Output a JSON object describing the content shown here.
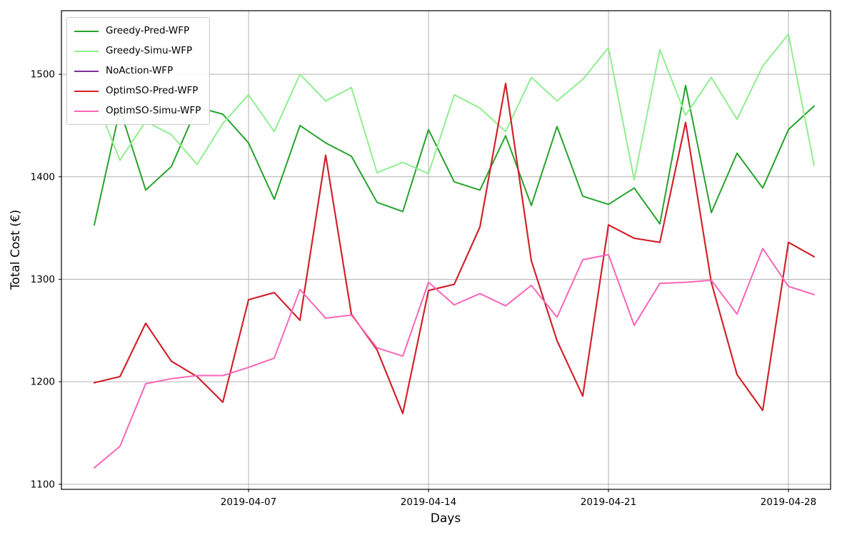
{
  "chart_data": {
    "type": "line",
    "title": "",
    "xlabel": "Days",
    "ylabel": "Total Cost (€)",
    "grid": true,
    "legend_position": "upper-left",
    "x": [
      "2019-04-01",
      "2019-04-02",
      "2019-04-03",
      "2019-04-04",
      "2019-04-05",
      "2019-04-06",
      "2019-04-07",
      "2019-04-08",
      "2019-04-09",
      "2019-04-10",
      "2019-04-11",
      "2019-04-12",
      "2019-04-13",
      "2019-04-14",
      "2019-04-15",
      "2019-04-16",
      "2019-04-17",
      "2019-04-18",
      "2019-04-19",
      "2019-04-20",
      "2019-04-21",
      "2019-04-22",
      "2019-04-23",
      "2019-04-24",
      "2019-04-25",
      "2019-04-26",
      "2019-04-27",
      "2019-04-28",
      "2019-04-29"
    ],
    "x_tick_labels": [
      "2019-04-07",
      "2019-04-14",
      "2019-04-21",
      "2019-04-28"
    ],
    "x_tick_indices": [
      6,
      13,
      20,
      27
    ],
    "y_ticks": [
      1100,
      1200,
      1300,
      1400,
      1500
    ],
    "ylim": [
      1095,
      1562
    ],
    "series": [
      {
        "name": "Greedy-Pred-WFP",
        "color": "#25a32b",
        "values": [
          1353,
          1466,
          1387,
          1410,
          1468,
          1461,
          1433,
          1378,
          1450,
          1433,
          1420,
          1375,
          1366,
          1446,
          1395,
          1387,
          1440,
          1372,
          1449,
          1381,
          1373,
          1389,
          1354,
          1489,
          1365,
          1423,
          1389,
          1446,
          1469
        ]
      },
      {
        "name": "Greedy-Simu-WFP",
        "color": "#90ee90",
        "values": [
          1479,
          1416,
          1454,
          1441,
          1412,
          1452,
          1480,
          1444,
          1500,
          1474,
          1487,
          1404,
          1414,
          1403,
          1480,
          1467,
          1444,
          1497,
          1474,
          1495,
          1526,
          1397,
          1524,
          1460,
          1497,
          1456,
          1508,
          1539,
          1411
        ]
      },
      {
        "name": "NoAction-WFP",
        "color": "#7e2f9e",
        "hidden_behind": "OptimSO-Pred-WFP",
        "values": [
          1199,
          1205,
          1257,
          1220,
          1205,
          1180,
          1280,
          1287,
          1260,
          1421,
          1266,
          1231,
          1169,
          1289,
          1295,
          1351,
          1491,
          1318,
          1240,
          1186,
          1353,
          1340,
          1336,
          1453,
          1297,
          1207,
          1172,
          1336,
          1322
        ]
      },
      {
        "name": "OptimSO-Pred-WFP",
        "color": "#d62022",
        "values": [
          1199,
          1205,
          1257,
          1220,
          1205,
          1180,
          1280,
          1287,
          1260,
          1421,
          1266,
          1231,
          1169,
          1289,
          1295,
          1351,
          1491,
          1318,
          1240,
          1186,
          1353,
          1340,
          1336,
          1453,
          1297,
          1207,
          1172,
          1336,
          1322
        ]
      },
      {
        "name": "OptimSO-Simu-WFP",
        "color": "#f966b8",
        "values": [
          1116,
          1137,
          1198,
          1203,
          1206,
          1206,
          1214,
          1223,
          1290,
          1262,
          1265,
          1233,
          1225,
          1297,
          1275,
          1286,
          1274,
          1294,
          1263,
          1319,
          1324,
          1255,
          1296,
          1297,
          1299,
          1266,
          1330,
          1293,
          1285
        ]
      }
    ]
  }
}
